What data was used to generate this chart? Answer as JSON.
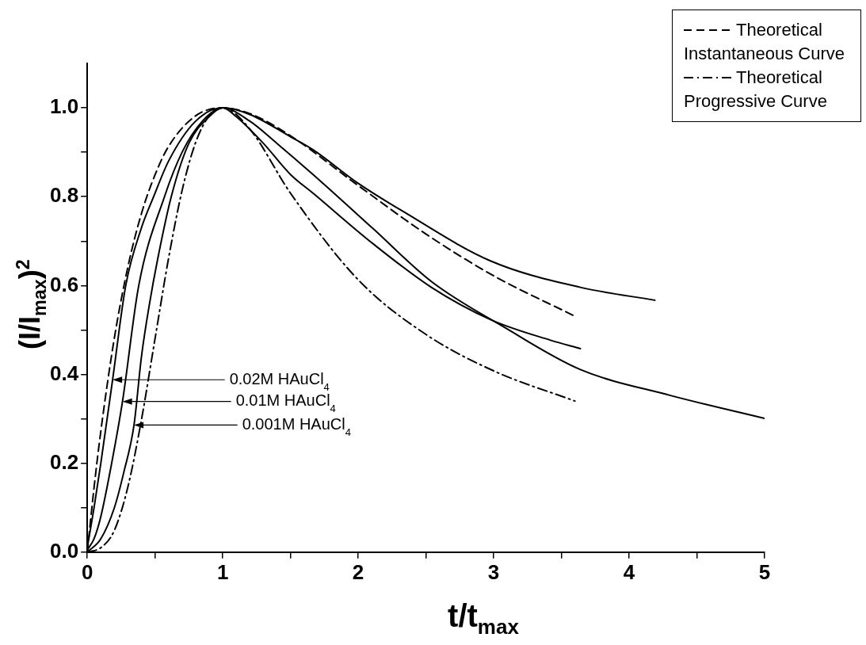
{
  "chart_data": {
    "type": "line",
    "xlabel": "t/t$_{max}$",
    "ylabel": "(I/I$_{max}$)$^{2}$",
    "series": [
      {
        "name": "Theoretical Instantaneous Curve",
        "color": "#000000",
        "line_style": "dashed",
        "x": [
          0,
          0.05,
          0.1,
          0.2,
          0.3,
          0.4,
          0.5,
          0.6,
          0.8,
          1,
          1.2,
          1.5,
          2,
          2.5,
          3,
          3.6
        ],
        "values": [
          0,
          0.145,
          0.272,
          0.482,
          0.642,
          0.762,
          0.849,
          0.913,
          0.982,
          1.0,
          0.987,
          0.937,
          0.825,
          0.716,
          0.622,
          0.531
        ]
      },
      {
        "name": "Theoretical Progressive Curve",
        "color": "#000000",
        "line_style": "dashdot",
        "x": [
          0,
          0.1,
          0.2,
          0.3,
          0.4,
          0.5,
          0.6,
          0.7,
          0.8,
          0.9,
          1,
          1.2,
          1.5,
          2,
          2.5,
          3,
          3.6
        ],
        "values": [
          0,
          0.01,
          0.049,
          0.147,
          0.298,
          0.48,
          0.661,
          0.814,
          0.922,
          0.982,
          1.0,
          0.952,
          0.808,
          0.613,
          0.49,
          0.408,
          0.34
        ]
      },
      {
        "color": "#000000",
        "line_style": "solid",
        "x": [
          0,
          0.05,
          0.1,
          0.187,
          0.284,
          0.4,
          0.49,
          0.6,
          0.8,
          1,
          1.2,
          1.5,
          1.67,
          2,
          2.33,
          2.98,
          3.64,
          4.19
        ],
        "values": [
          0.01,
          0.1,
          0.2,
          0.388,
          0.6,
          0.73,
          0.8,
          0.88,
          0.97,
          1.0,
          0.985,
          0.935,
          0.905,
          0.83,
          0.767,
          0.655,
          0.596,
          0.567
        ]
      },
      {
        "color": "#000000",
        "line_style": "solid",
        "x": [
          0,
          0.05,
          0.1,
          0.18,
          0.26,
          0.38,
          0.57,
          0.7,
          0.85,
          1,
          1.2,
          1.4,
          1.67,
          2.11,
          2.54,
          3.09,
          3.64,
          4.3,
          5.0
        ],
        "values": [
          0.005,
          0.03,
          0.08,
          0.2,
          0.339,
          0.6,
          0.8,
          0.9,
          0.97,
          1.0,
          0.97,
          0.92,
          0.849,
          0.728,
          0.609,
          0.504,
          0.411,
          0.353,
          0.301
        ]
      },
      {
        "color": "#000000",
        "line_style": "solid",
        "x": [
          0,
          0.1,
          0.2,
          0.27,
          0.345,
          0.4,
          0.46,
          0.52,
          0.62,
          0.75,
          0.9,
          1,
          1.1,
          1.3,
          1.5,
          1.67,
          2.11,
          2.54,
          2.98,
          3.42,
          3.64
        ],
        "values": [
          0,
          0.03,
          0.1,
          0.18,
          0.286,
          0.44,
          0.56,
          0.66,
          0.8,
          0.92,
          0.98,
          1.0,
          0.98,
          0.92,
          0.85,
          0.807,
          0.694,
          0.596,
          0.523,
          0.477,
          0.458
        ]
      }
    ],
    "annotations": [
      {
        "text": "0.02M HAuCl$_{4}$",
        "x": 0.187,
        "y": 0.388
      },
      {
        "text": "0.01M HAuCl$_{4}$",
        "x": 0.26,
        "y": 0.339
      },
      {
        "text": "0.001M HAuCl$_{4}$",
        "x": 0.345,
        "y": 0.286
      }
    ],
    "xlim": [
      0,
      5
    ],
    "xticks": [
      0,
      {
        "value": 0.5,
        "label": null
      },
      1,
      {
        "value": 1.5,
        "label": null
      },
      2,
      {
        "value": 2.5,
        "label": null
      },
      3,
      {
        "value": 3.5,
        "label": null
      },
      4,
      {
        "value": 4.5,
        "label": null
      },
      5
    ],
    "ylim": [
      0,
      1.1
    ],
    "yticks": [
      {
        "value": 0,
        "label": "0.0"
      },
      {
        "value": 0.1,
        "label": null
      },
      {
        "value": 0.2,
        "label": "0.2"
      },
      {
        "value": 0.3,
        "label": null
      },
      {
        "value": 0.4,
        "label": "0.4"
      },
      {
        "value": 0.5,
        "label": null
      },
      {
        "value": 0.6,
        "label": "0.6"
      },
      {
        "value": 0.7,
        "label": null
      },
      {
        "value": 0.8,
        "label": "0.8"
      },
      {
        "value": 0.9,
        "label": null
      },
      {
        "value": 1.0,
        "label": "1.0"
      }
    ],
    "grid": false,
    "legend": "top right",
    "marker": "none"
  }
}
